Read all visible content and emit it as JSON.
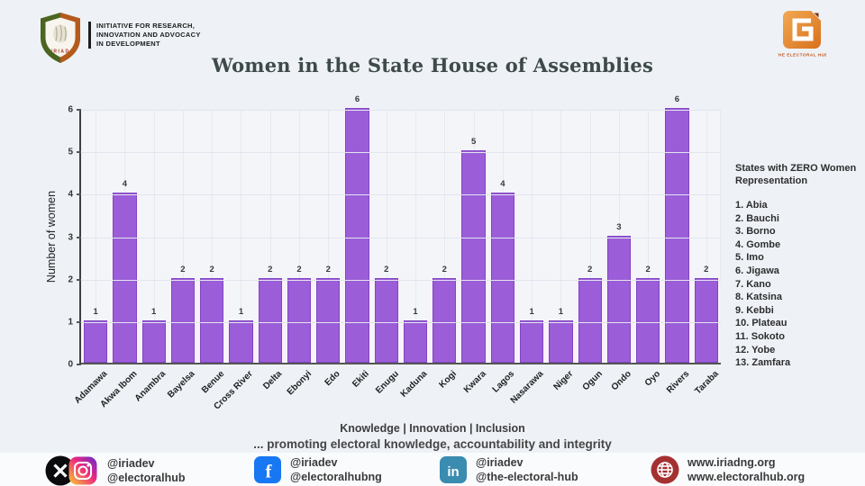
{
  "header": {
    "iriad_logo_text": "IRIAD",
    "iriad_org_lines": [
      "INITIATIVE FOR RESEARCH,",
      "INNOVATION AND ADVOCACY",
      "IN DEVELOPMENT"
    ],
    "electoral_hub_label": "THE ELECTORAL HUB"
  },
  "title": "Women in the State House of Assemblies",
  "chart_data": {
    "type": "bar",
    "title": "Women in the State House of Assemblies",
    "categories": [
      "Adamawa",
      "Akwa Ibom",
      "Anambra",
      "Bayelsa",
      "Benue",
      "Cross River",
      "Delta",
      "Ebonyi",
      "Edo",
      "Ekiti",
      "Enugu",
      "Kaduna",
      "Kogi",
      "Kwara",
      "Lagos",
      "Nasarawa",
      "Niger",
      "Ogun",
      "Ondo",
      "Oyo",
      "Rivers",
      "Taraba"
    ],
    "values": [
      1,
      4,
      1,
      2,
      2,
      1,
      2,
      2,
      2,
      6,
      2,
      1,
      2,
      5,
      4,
      1,
      1,
      2,
      3,
      2,
      6,
      2
    ],
    "xlabel": "",
    "ylabel": "Number of women",
    "ylim": [
      0,
      6
    ],
    "yticks": [
      0,
      1,
      2,
      3,
      4,
      5,
      6
    ],
    "bar_color": "#9b5ed8",
    "grid": true,
    "legend": "none",
    "value_labels_shown": true
  },
  "right_panel": {
    "heading": "States with ZERO Women Representation",
    "items": [
      "1. Abia",
      "2. Bauchi",
      "3. Borno",
      "4. Gombe",
      "5. Imo",
      "6. Jigawa",
      "7. Kano",
      "8. Katsina",
      "9. Kebbi",
      "10. Plateau",
      "11. Sokoto",
      "12. Yobe",
      "13. Zamfara"
    ]
  },
  "footer": {
    "tagline1": "Knowledge | Innovation | Inclusion",
    "tagline2": "... promoting electoral knowledge, accountability and integrity",
    "social": [
      {
        "network": "x-and-instagram",
        "lines": [
          "@iriadev",
          "@electoralhub"
        ]
      },
      {
        "network": "facebook",
        "lines": [
          "@iriadev",
          "@electoralhubng"
        ]
      },
      {
        "network": "linkedin",
        "lines": [
          "@iriadev",
          "@the-electoral-hub"
        ]
      },
      {
        "network": "website",
        "lines": [
          "www.iriadng.org",
          "www.electoralhub.org"
        ]
      }
    ]
  },
  "colors": {
    "page_bg": "#eef2f7",
    "bar_fill": "#9b5ed8",
    "bar_border": "#8144c4",
    "title_text": "#3e4a48",
    "gridline": "#e2e5ee",
    "facebook_blue": "#1877f2",
    "linkedin_teal": "#3a8cb0",
    "globe_red": "#a53031",
    "eh_orange": "#d8701d"
  }
}
